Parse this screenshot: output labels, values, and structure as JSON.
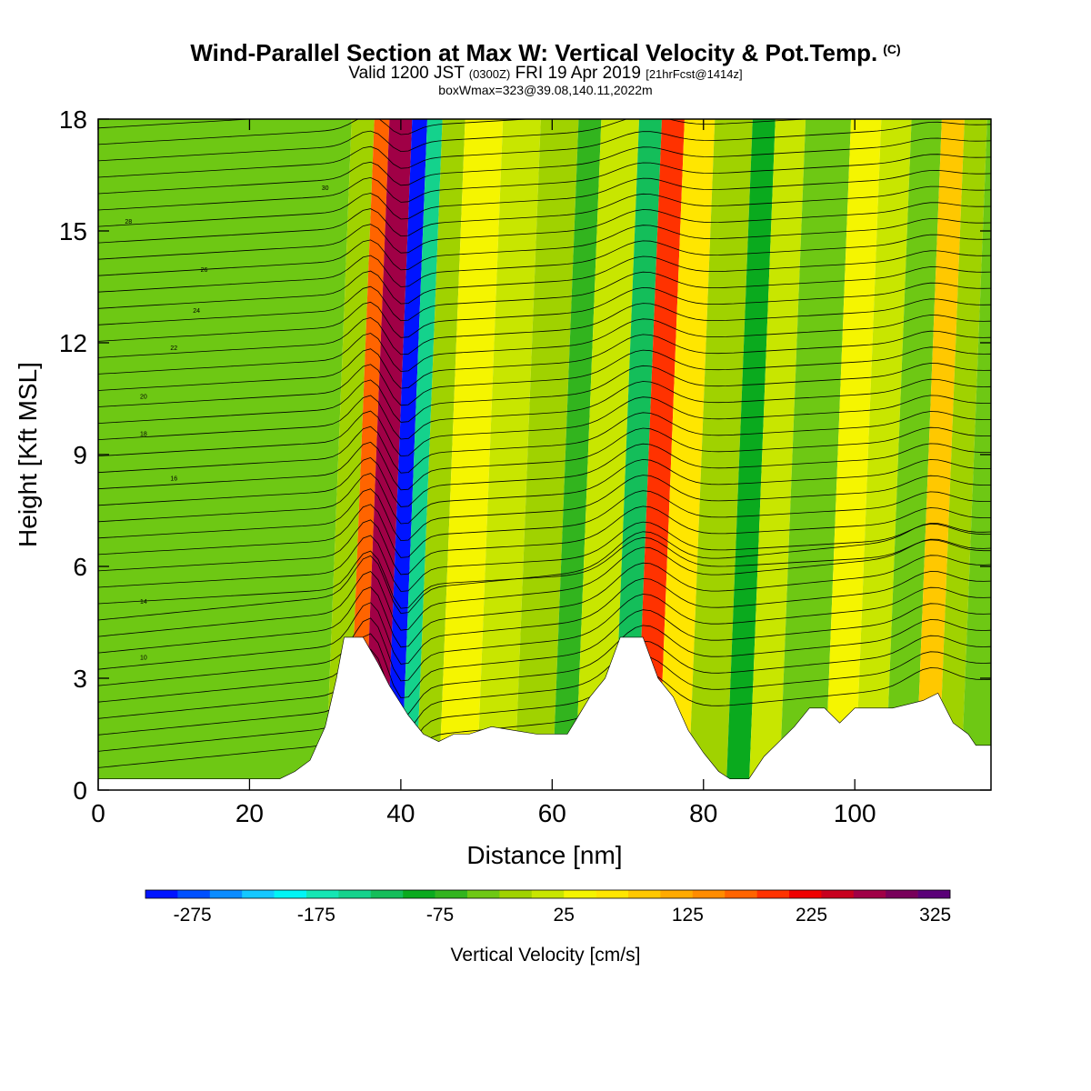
{
  "chart_data": {
    "type": "heatmap",
    "title": "Wind-Parallel Section at Max W: Vertical Velocity & Pot.Temp.",
    "title_mark": "(C)",
    "subtitle": {
      "valid_prefix": "Valid 1200 JST",
      "utc": "(0300Z)",
      "date": "FRI 19 Apr 2019",
      "forecast": "[21hrFcst@1414z]"
    },
    "info_line": "boxWmax=323@39.08,140.11,2022m",
    "xlabel": "Distance [nm]",
    "ylabel": "Height [Kft MSL]",
    "xlim": [
      0,
      118
    ],
    "ylim": [
      0,
      18
    ],
    "x_ticks": [
      "0",
      "20",
      "40",
      "60",
      "80",
      "100"
    ],
    "y_ticks": [
      "0",
      "3",
      "6",
      "9",
      "12",
      "15",
      "18"
    ],
    "colorbar": {
      "label": "Vertical Velocity [cm/s]",
      "tick_labels": [
        "-275",
        "-175",
        "-75",
        "25",
        "125",
        "225",
        "325"
      ],
      "colors": [
        "#0014ff",
        "#0050ff",
        "#0a8cff",
        "#14c8ff",
        "#00f5f5",
        "#14e6b4",
        "#14d28c",
        "#14be5a",
        "#0aaa1e",
        "#32b41e",
        "#6ec814",
        "#a0d200",
        "#c8e600",
        "#f5f500",
        "#ffe600",
        "#ffc800",
        "#ffaa00",
        "#ff8c00",
        "#ff6400",
        "#ff3200",
        "#f00000",
        "#c8001e",
        "#a00046",
        "#78005a",
        "#5a0078"
      ]
    },
    "velocity_bands": [
      {
        "x": [
          0,
          30
        ],
        "value": -25
      },
      {
        "x": [
          30,
          33
        ],
        "value": 0
      },
      {
        "x": [
          33,
          35
        ],
        "value": 175
      },
      {
        "x": [
          35,
          38
        ],
        "value": 275
      },
      {
        "x": [
          38,
          40
        ],
        "value": -275
      },
      {
        "x": [
          40,
          42
        ],
        "value": -125
      },
      {
        "x": [
          42,
          45
        ],
        "value": 0
      },
      {
        "x": [
          45,
          50
        ],
        "value": 50
      },
      {
        "x": [
          50,
          55
        ],
        "value": 25
      },
      {
        "x": [
          55,
          60
        ],
        "value": 0
      },
      {
        "x": [
          60,
          63
        ],
        "value": -50
      },
      {
        "x": [
          63,
          68
        ],
        "value": 25
      },
      {
        "x": [
          68,
          71
        ],
        "value": -100
      },
      {
        "x": [
          71,
          74
        ],
        "value": 200
      },
      {
        "x": [
          74,
          78
        ],
        "value": 75
      },
      {
        "x": [
          78,
          83
        ],
        "value": 0
      },
      {
        "x": [
          83,
          86
        ],
        "value": -75
      },
      {
        "x": [
          86,
          90
        ],
        "value": 25
      },
      {
        "x": [
          90,
          96
        ],
        "value": -25
      },
      {
        "x": [
          96,
          100
        ],
        "value": 50
      },
      {
        "x": [
          100,
          104
        ],
        "value": 25
      },
      {
        "x": [
          104,
          108
        ],
        "value": -25
      },
      {
        "x": [
          108,
          111
        ],
        "value": 100
      },
      {
        "x": [
          111,
          114
        ],
        "value": 0
      },
      {
        "x": [
          114,
          118
        ],
        "value": -25
      }
    ],
    "contour_labels": [
      "10",
      "14",
      "16",
      "18",
      "20",
      "22",
      "24",
      "26",
      "28",
      "30",
      "32",
      "34"
    ],
    "terrain_kft": [
      [
        0,
        0.3
      ],
      [
        24,
        0.3
      ],
      [
        26,
        0.5
      ],
      [
        28,
        0.8
      ],
      [
        30,
        1.7
      ],
      [
        31.5,
        3.0
      ],
      [
        32.5,
        4.1
      ],
      [
        35,
        4.1
      ],
      [
        37,
        3.4
      ],
      [
        38.5,
        2.8
      ],
      [
        41,
        2.0
      ],
      [
        43,
        1.5
      ],
      [
        45,
        1.3
      ],
      [
        47,
        1.5
      ],
      [
        49,
        1.5
      ],
      [
        52,
        1.7
      ],
      [
        55,
        1.6
      ],
      [
        58,
        1.5
      ],
      [
        62,
        1.5
      ],
      [
        65,
        2.5
      ],
      [
        67,
        3.0
      ],
      [
        69,
        4.1
      ],
      [
        72,
        4.1
      ],
      [
        74,
        3.0
      ],
      [
        76,
        2.5
      ],
      [
        78,
        1.6
      ],
      [
        80,
        1.0
      ],
      [
        82,
        0.5
      ],
      [
        83.5,
        0.3
      ],
      [
        86,
        0.3
      ],
      [
        88,
        0.9
      ],
      [
        90,
        1.3
      ],
      [
        92,
        1.7
      ],
      [
        94,
        2.2
      ],
      [
        96,
        2.2
      ],
      [
        98,
        1.8
      ],
      [
        100,
        2.2
      ],
      [
        103,
        2.2
      ],
      [
        105,
        2.2
      ],
      [
        107,
        2.3
      ],
      [
        109,
        2.4
      ],
      [
        111,
        2.6
      ],
      [
        113,
        1.8
      ],
      [
        115,
        1.5
      ],
      [
        116,
        1.2
      ],
      [
        118,
        1.2
      ]
    ]
  }
}
